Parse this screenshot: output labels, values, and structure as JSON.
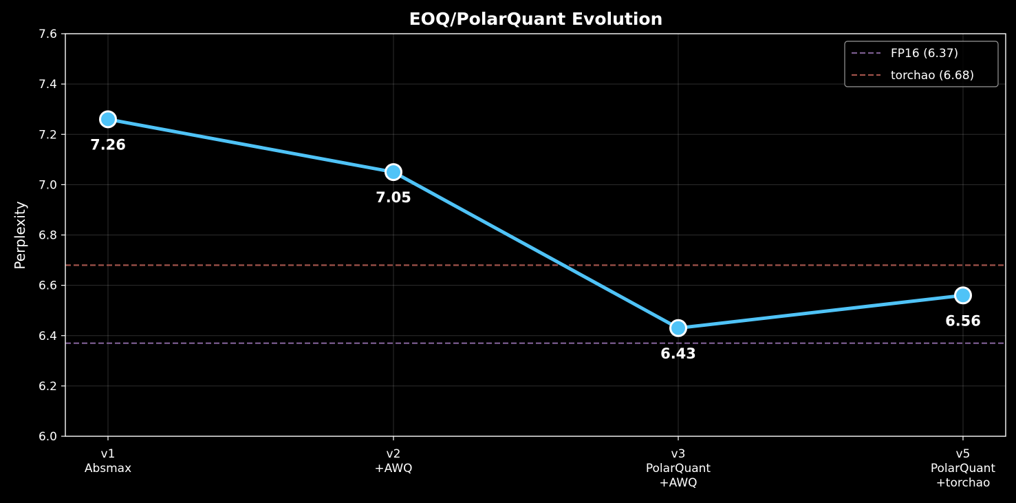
{
  "chart_data": {
    "type": "line",
    "title": "EOQ/PolarQuant Evolution",
    "xlabel": "",
    "ylabel": "Perplexity",
    "categories": [
      [
        "v1",
        "Absmax"
      ],
      [
        "v2",
        "+AWQ"
      ],
      [
        "v3",
        "PolarQuant",
        "+AWQ"
      ],
      [
        "v5",
        "PolarQuant",
        "+torchao"
      ]
    ],
    "series": [
      {
        "values": [
          7.26,
          7.05,
          6.43,
          6.56
        ],
        "color": "#4fc3f7"
      }
    ],
    "data_labels": [
      "7.26",
      "7.05",
      "6.43",
      "6.56"
    ],
    "ylim": [
      6.0,
      7.6
    ],
    "yticks": [
      6.0,
      6.2,
      6.4,
      6.6,
      6.8,
      7.0,
      7.2,
      7.4,
      7.6
    ],
    "ytick_labels": [
      "6.0",
      "6.2",
      "6.4",
      "6.6",
      "6.8",
      "7.0",
      "7.2",
      "7.4",
      "7.6"
    ],
    "reference_lines": [
      {
        "label": "FP16 (6.37)",
        "value": 6.37,
        "color": "#7b5c8f"
      },
      {
        "label": "torchao (6.68)",
        "value": 6.68,
        "color": "#a0524a"
      }
    ],
    "grid": true,
    "legend_position": "top-right"
  }
}
